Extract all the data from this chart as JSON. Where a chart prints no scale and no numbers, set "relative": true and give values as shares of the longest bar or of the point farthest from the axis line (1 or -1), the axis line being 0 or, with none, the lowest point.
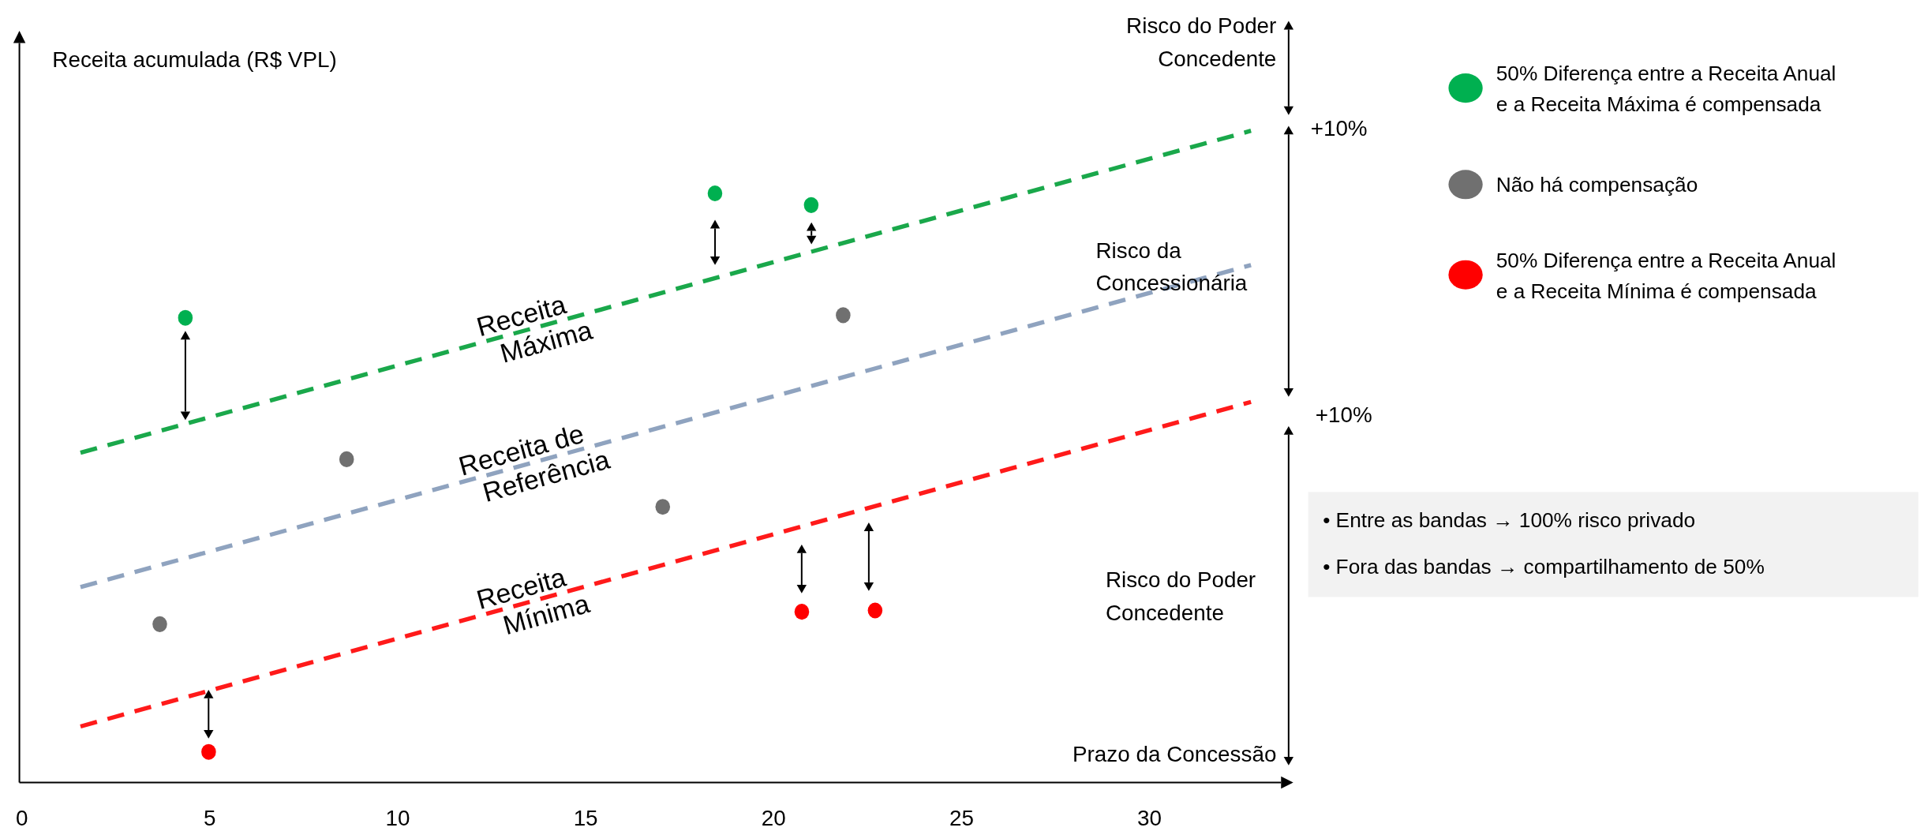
{
  "chart_data": {
    "type": "line",
    "relative": true,
    "xlabel": "Prazo da Concessão",
    "ylabel": "Receita acumulada (R$ VPL)",
    "xlim": [
      0,
      33.5
    ],
    "xticks": [
      0,
      5,
      10,
      15,
      20,
      25,
      30
    ],
    "grid": false,
    "legend": "top right",
    "line_style": "dashed",
    "series": [
      {
        "name": "Receita Máxima",
        "marker": "none",
        "color": "#1aa84b",
        "x": [
          1.56,
          32.7
        ],
        "values": [
          0.506,
          1.0
        ]
      },
      {
        "name": "Receita de Referência",
        "marker": "none",
        "color": "#8fa3bf",
        "x": [
          1.56,
          32.7
        ],
        "values": [
          0.3,
          0.794
        ]
      },
      {
        "name": "Receita Mínima",
        "marker": "none",
        "color": "#ff1a1a",
        "x": [
          1.56,
          32.7
        ],
        "values": [
          0.086,
          0.584
        ]
      },
      {
        "name": "50% Diferença entre a Receita Anual e a Receita Máxima é compensada",
        "type": "scatter",
        "marker": "circle",
        "color": "#00b050",
        "x": [
          4.35,
          18.44,
          21.0
        ],
        "values": [
          0.713,
          0.904,
          0.886
        ]
      },
      {
        "name": "Não há compensação",
        "type": "scatter",
        "marker": "circle",
        "color": "#707070",
        "x": [
          3.67,
          8.64,
          17.05,
          21.85
        ],
        "values": [
          0.243,
          0.496,
          0.423,
          0.717
        ]
      },
      {
        "name": "50% Diferença entre a Receita Anual e a Receita Mínima é compensada",
        "type": "scatter",
        "marker": "circle",
        "color": "#ff0000",
        "x": [
          4.97,
          20.75,
          22.7
        ],
        "values": [
          0.047,
          0.262,
          0.264
        ]
      }
    ],
    "annotations": [
      "Risco do Poder Concedente",
      "+10%",
      "Risco da Concessionária",
      "+10%",
      "Risco do Poder Concedente",
      "• Entre as bandas → 100% risco privado",
      "• Fora das bandas → compartilhamento de 50%"
    ]
  }
}
